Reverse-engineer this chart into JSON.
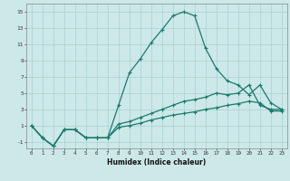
{
  "xlabel": "Humidex (Indice chaleur)",
  "bg_color": "#cce8e8",
  "line_color": "#1a7a6e",
  "grid_color": "#aad0d0",
  "xlim": [
    -0.5,
    23.5
  ],
  "ylim": [
    -1.8,
    16
  ],
  "xticks": [
    0,
    1,
    2,
    3,
    4,
    5,
    6,
    7,
    8,
    9,
    10,
    11,
    12,
    13,
    14,
    15,
    16,
    17,
    18,
    19,
    20,
    21,
    22,
    23
  ],
  "yticks": [
    -1,
    1,
    3,
    5,
    7,
    9,
    11,
    13,
    15
  ],
  "line1_x": [
    0,
    1,
    2,
    3,
    4,
    5,
    6,
    7,
    8,
    9,
    10,
    11,
    12,
    13,
    14,
    15,
    16,
    17,
    18,
    19,
    20,
    21,
    22,
    23
  ],
  "line1_y": [
    1,
    -0.5,
    -1.5,
    0.5,
    0.5,
    -0.5,
    -0.5,
    -0.5,
    3.5,
    7.5,
    9.2,
    11.2,
    12.8,
    14.5,
    15.0,
    14.5,
    10.5,
    8.0,
    6.5,
    6.0,
    4.8,
    6.0,
    3.8,
    3.0
  ],
  "line2_x": [
    0,
    1,
    2,
    3,
    4,
    5,
    6,
    7,
    8,
    9,
    10,
    11,
    12,
    13,
    14,
    15,
    16,
    17,
    18,
    19,
    20,
    21,
    22,
    23
  ],
  "line2_y": [
    1,
    -0.5,
    -1.5,
    0.5,
    0.5,
    -0.5,
    -0.5,
    -0.5,
    1.2,
    1.5,
    2.0,
    2.5,
    3.0,
    3.5,
    4.0,
    4.2,
    4.5,
    5.0,
    4.8,
    5.0,
    6.0,
    3.5,
    3.0,
    3.0
  ],
  "line3_x": [
    0,
    1,
    2,
    3,
    4,
    5,
    6,
    7,
    8,
    9,
    10,
    11,
    12,
    13,
    14,
    15,
    16,
    17,
    18,
    19,
    20,
    21,
    22,
    23
  ],
  "line3_y": [
    1,
    -0.5,
    -1.5,
    0.5,
    0.5,
    -0.5,
    -0.5,
    -0.5,
    0.8,
    1.0,
    1.3,
    1.7,
    2.0,
    2.3,
    2.5,
    2.7,
    3.0,
    3.2,
    3.5,
    3.7,
    4.0,
    3.8,
    2.8,
    2.8
  ],
  "marker": "+",
  "markersize": 3,
  "linewidth": 0.9
}
